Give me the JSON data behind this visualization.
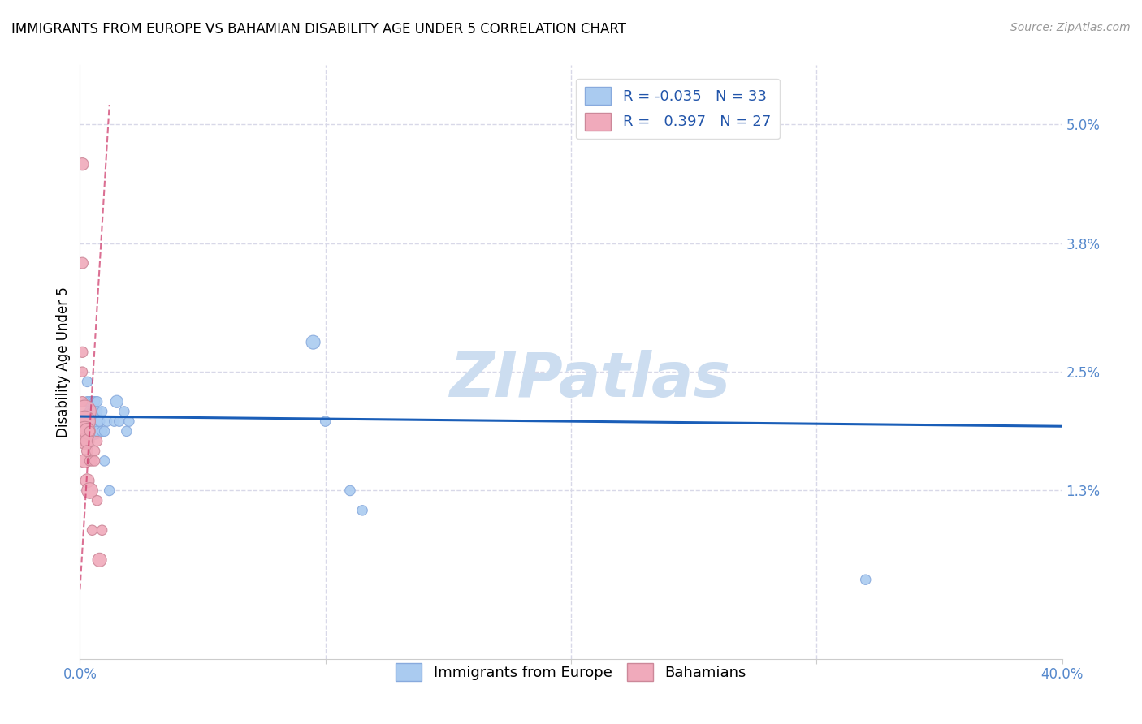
{
  "title": "IMMIGRANTS FROM EUROPE VS BAHAMIAN DISABILITY AGE UNDER 5 CORRELATION CHART",
  "source": "Source: ZipAtlas.com",
  "ylabel": "Disability Age Under 5",
  "xlim": [
    0.0,
    0.4
  ],
  "ylim": [
    -0.004,
    0.056
  ],
  "blue_color": "#aacbf0",
  "pink_color": "#f0aabb",
  "blue_line_color": "#1a5eb8",
  "pink_line_color": "#cc3366",
  "grid_color": "#d8d8e8",
  "watermark": "ZIPatlas",
  "ytick_values": [
    0.013,
    0.025,
    0.038,
    0.05
  ],
  "ytick_labels": [
    "1.3%",
    "2.5%",
    "3.8%",
    "5.0%"
  ],
  "xtick_values": [
    0.0,
    0.1,
    0.2,
    0.3,
    0.4
  ],
  "blue_x": [
    0.001,
    0.003,
    0.003,
    0.004,
    0.004,
    0.005,
    0.005,
    0.005,
    0.006,
    0.006,
    0.006,
    0.007,
    0.007,
    0.007,
    0.008,
    0.008,
    0.009,
    0.009,
    0.01,
    0.01,
    0.011,
    0.012,
    0.014,
    0.015,
    0.016,
    0.018,
    0.019,
    0.02,
    0.095,
    0.1,
    0.11,
    0.115,
    0.32
  ],
  "blue_y": [
    0.02,
    0.024,
    0.022,
    0.021,
    0.022,
    0.021,
    0.022,
    0.02,
    0.021,
    0.022,
    0.019,
    0.022,
    0.021,
    0.019,
    0.02,
    0.02,
    0.021,
    0.019,
    0.016,
    0.019,
    0.02,
    0.013,
    0.02,
    0.022,
    0.02,
    0.021,
    0.019,
    0.02,
    0.028,
    0.02,
    0.013,
    0.011,
    0.004
  ],
  "blue_sizes": [
    80,
    80,
    80,
    80,
    80,
    80,
    80,
    80,
    80,
    80,
    200,
    80,
    80,
    80,
    80,
    80,
    80,
    80,
    80,
    80,
    80,
    80,
    80,
    120,
    80,
    80,
    80,
    80,
    150,
    80,
    80,
    80,
    80
  ],
  "blue_sizes2": [
    150,
    150,
    120,
    80,
    80,
    80,
    80,
    80,
    150,
    80,
    80
  ],
  "pink_x": [
    0.001,
    0.001,
    0.001,
    0.001,
    0.001,
    0.001,
    0.001,
    0.002,
    0.002,
    0.002,
    0.002,
    0.002,
    0.003,
    0.003,
    0.003,
    0.003,
    0.004,
    0.004,
    0.004,
    0.005,
    0.005,
    0.006,
    0.006,
    0.007,
    0.007,
    0.008,
    0.009
  ],
  "pink_y": [
    0.046,
    0.036,
    0.027,
    0.025,
    0.022,
    0.02,
    0.018,
    0.021,
    0.02,
    0.019,
    0.018,
    0.016,
    0.019,
    0.018,
    0.017,
    0.014,
    0.019,
    0.016,
    0.013,
    0.016,
    0.009,
    0.017,
    0.016,
    0.018,
    0.012,
    0.006,
    0.009
  ],
  "pink_sizes": [
    120,
    100,
    90,
    80,
    80,
    80,
    80,
    400,
    350,
    300,
    200,
    150,
    200,
    150,
    100,
    150,
    80,
    80,
    200,
    80,
    80,
    80,
    80,
    80,
    80,
    150,
    80
  ],
  "blue_line_x": [
    0.0,
    0.4
  ],
  "blue_line_y": [
    0.0205,
    0.0195
  ],
  "pink_line_x": [
    0.0,
    0.012
  ],
  "pink_line_y_start": 0.003,
  "pink_line_y_end": 0.052,
  "legend1_label": "R = -0.035   N = 33",
  "legend2_label": "R =   0.397   N = 27"
}
